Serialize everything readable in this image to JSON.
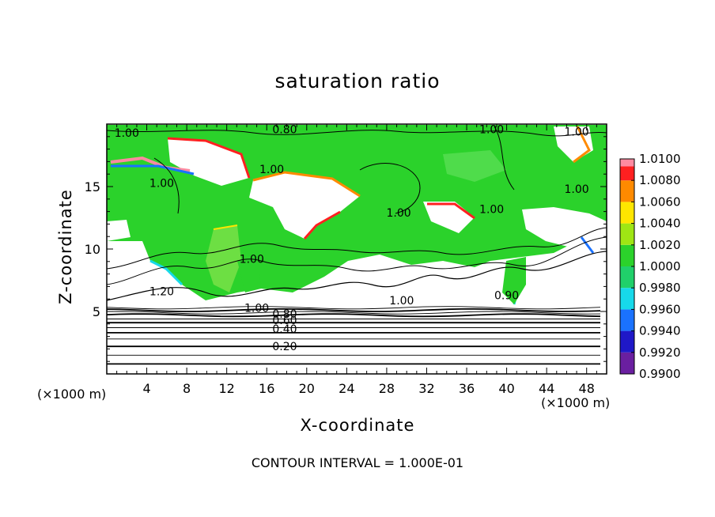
{
  "chart_data": {
    "type": "heatmap",
    "title": "saturation ratio",
    "xlabel": "X-coordinate",
    "ylabel": "Z-coordinate",
    "x_unit": "(×1000 m)",
    "footnote": "CONTOUR INTERVAL = 1.000E-01",
    "xlim": [
      0,
      50
    ],
    "ylim": [
      0,
      20
    ],
    "xticks": [
      4,
      8,
      12,
      16,
      20,
      24,
      28,
      32,
      36,
      40,
      44,
      48
    ],
    "yticks": [
      5,
      10,
      15
    ],
    "colorbar": {
      "levels": [
        0.99,
        0.992,
        0.994,
        0.996,
        0.998,
        1.0,
        1.002,
        1.004,
        1.006,
        1.008,
        1.01
      ],
      "labels": [
        "0.9900",
        "0.9920",
        "0.9940",
        "0.9960",
        "0.9980",
        "1.0000",
        "1.0020",
        "1.0040",
        "1.0060",
        "1.0080",
        "1.0100"
      ],
      "colors": [
        "#6a1fa0",
        "#1f18c8",
        "#1a72ff",
        "#17d9ea",
        "#20d06a",
        "#2bd22b",
        "#9fe614",
        "#ffe600",
        "#ff8a00",
        "#ff2020",
        "#ff8aa0"
      ]
    },
    "contour_labels": [
      {
        "text": "1.00",
        "x": 2,
        "z": 19.3
      },
      {
        "text": "0.80",
        "x": 17.8,
        "z": 19.6
      },
      {
        "text": "1.00",
        "x": 38.5,
        "z": 19.6
      },
      {
        "text": "1.00",
        "x": 47,
        "z": 19.4
      },
      {
        "text": "1.00",
        "x": 5.5,
        "z": 15.3
      },
      {
        "text": "1.00",
        "x": 16.5,
        "z": 16.4
      },
      {
        "text": "1.00",
        "x": 47,
        "z": 14.8
      },
      {
        "text": "1.00",
        "x": 29.2,
        "z": 12.9
      },
      {
        "text": "1.00",
        "x": 38.5,
        "z": 13.2
      },
      {
        "text": "1.00",
        "x": 14.5,
        "z": 9.2
      },
      {
        "text": "1.20",
        "x": 5.5,
        "z": 6.6
      },
      {
        "text": "1.00",
        "x": 15.0,
        "z": 5.3
      },
      {
        "text": "0.80",
        "x": 17.8,
        "z": 4.8
      },
      {
        "text": "0.60",
        "x": 17.8,
        "z": 4.3
      },
      {
        "text": "0.40",
        "x": 17.8,
        "z": 3.6
      },
      {
        "text": "0.20",
        "x": 17.8,
        "z": 2.2
      },
      {
        "text": "1.00",
        "x": 29.5,
        "z": 5.9
      },
      {
        "text": "0.90",
        "x": 40,
        "z": 6.3
      }
    ]
  }
}
